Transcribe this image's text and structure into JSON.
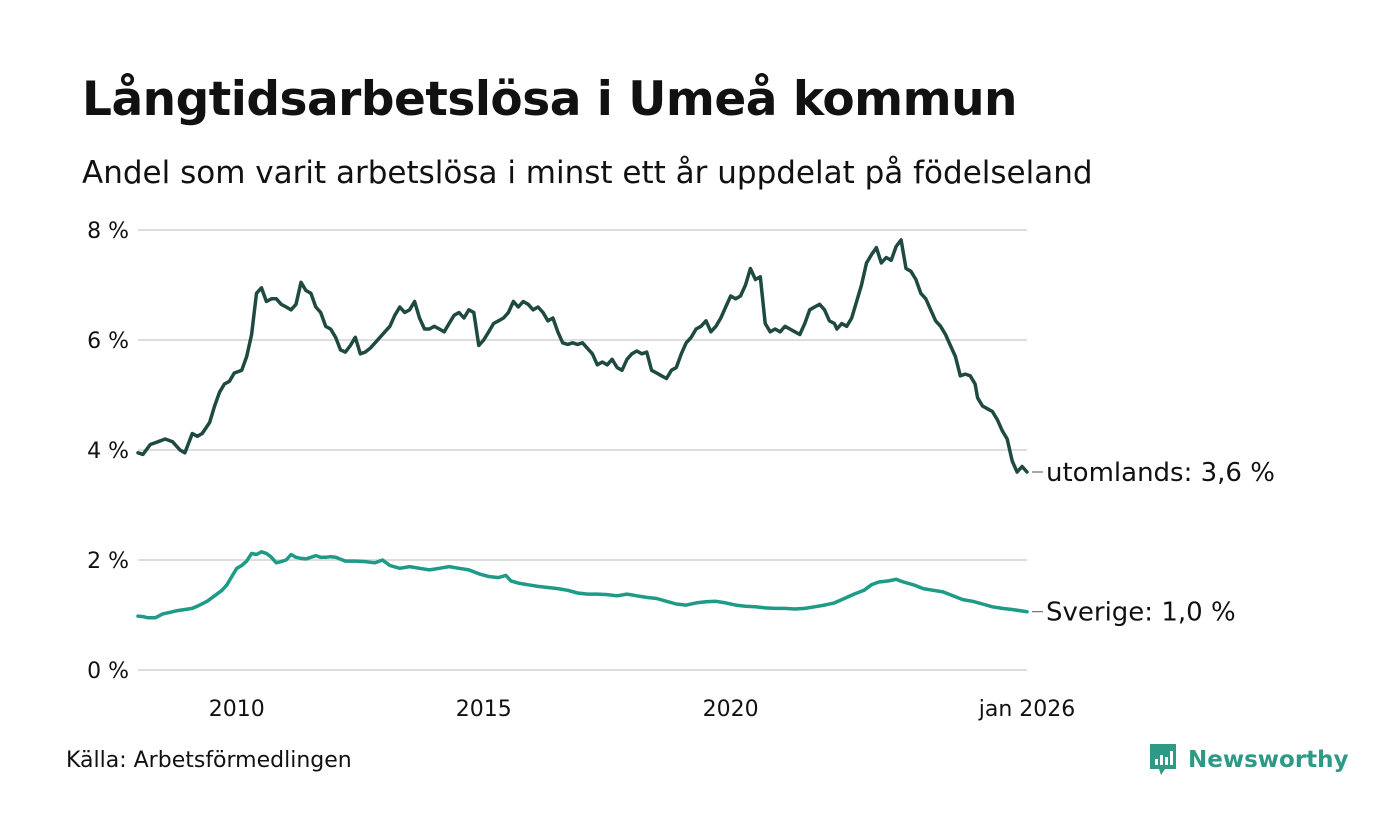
{
  "header": {
    "title": "Långtidsarbetslösa i Umeå kommun",
    "subtitle": "Andel som varit arbetslösa i minst ett år uppdelat på födelseland"
  },
  "footer": {
    "source": "Källa: Arbetsförmedlingen",
    "brand": "Newsworthy",
    "brand_icon": "newsworthy-logo-icon"
  },
  "colors": {
    "utomlands": "#1f4a42",
    "sverige": "#1e9a87",
    "grid": "#dddddd",
    "brand": "#2e9a85"
  },
  "chart_data": {
    "type": "line",
    "title": "Långtidsarbetslösa i Umeå kommun",
    "subtitle": "Andel som varit arbetslösa i minst ett år uppdelat på födelseland",
    "xlabel": "",
    "ylabel": "",
    "x_unit": "year (decimal, monthly data)",
    "xlim": [
      2008.0,
      2026.0
    ],
    "ylim": [
      0,
      8
    ],
    "grid": true,
    "y_ticks": [
      0,
      2,
      4,
      6,
      8
    ],
    "y_tick_labels": [
      "0 %",
      "2 %",
      "4 %",
      "6 %",
      "8 %"
    ],
    "x_ticks": [
      2010,
      2015,
      2020,
      2026.0
    ],
    "x_tick_labels": [
      "2010",
      "2015",
      "2020",
      "jan 2026"
    ],
    "series": [
      {
        "name": "utomlands",
        "end_label": "utomlands: 3,6 %",
        "points": [
          [
            2008.0,
            3.95
          ],
          [
            2008.1,
            3.92
          ],
          [
            2008.25,
            4.1
          ],
          [
            2008.4,
            4.15
          ],
          [
            2008.55,
            4.2
          ],
          [
            2008.7,
            4.15
          ],
          [
            2008.85,
            4.0
          ],
          [
            2008.95,
            3.95
          ],
          [
            2009.1,
            4.3
          ],
          [
            2009.2,
            4.25
          ],
          [
            2009.3,
            4.3
          ],
          [
            2009.45,
            4.5
          ],
          [
            2009.55,
            4.8
          ],
          [
            2009.65,
            5.05
          ],
          [
            2009.75,
            5.2
          ],
          [
            2009.85,
            5.25
          ],
          [
            2009.95,
            5.4
          ],
          [
            2010.1,
            5.45
          ],
          [
            2010.2,
            5.7
          ],
          [
            2010.3,
            6.1
          ],
          [
            2010.4,
            6.85
          ],
          [
            2010.5,
            6.95
          ],
          [
            2010.6,
            6.7
          ],
          [
            2010.7,
            6.75
          ],
          [
            2010.8,
            6.75
          ],
          [
            2010.9,
            6.65
          ],
          [
            2011.0,
            6.6
          ],
          [
            2011.1,
            6.55
          ],
          [
            2011.2,
            6.65
          ],
          [
            2011.3,
            7.05
          ],
          [
            2011.4,
            6.9
          ],
          [
            2011.5,
            6.85
          ],
          [
            2011.6,
            6.6
          ],
          [
            2011.7,
            6.5
          ],
          [
            2011.8,
            6.25
          ],
          [
            2011.9,
            6.2
          ],
          [
            2012.0,
            6.05
          ],
          [
            2012.1,
            5.82
          ],
          [
            2012.2,
            5.78
          ],
          [
            2012.3,
            5.9
          ],
          [
            2012.4,
            6.05
          ],
          [
            2012.5,
            5.75
          ],
          [
            2012.6,
            5.78
          ],
          [
            2012.7,
            5.85
          ],
          [
            2012.8,
            5.95
          ],
          [
            2012.9,
            6.05
          ],
          [
            2013.0,
            6.15
          ],
          [
            2013.1,
            6.25
          ],
          [
            2013.2,
            6.45
          ],
          [
            2013.3,
            6.6
          ],
          [
            2013.4,
            6.5
          ],
          [
            2013.5,
            6.55
          ],
          [
            2013.6,
            6.7
          ],
          [
            2013.7,
            6.4
          ],
          [
            2013.8,
            6.2
          ],
          [
            2013.9,
            6.2
          ],
          [
            2014.0,
            6.25
          ],
          [
            2014.1,
            6.2
          ],
          [
            2014.2,
            6.15
          ],
          [
            2014.3,
            6.3
          ],
          [
            2014.4,
            6.45
          ],
          [
            2014.5,
            6.5
          ],
          [
            2014.6,
            6.4
          ],
          [
            2014.7,
            6.55
          ],
          [
            2014.8,
            6.5
          ],
          [
            2014.9,
            5.9
          ],
          [
            2015.0,
            6.0
          ],
          [
            2015.1,
            6.15
          ],
          [
            2015.2,
            6.3
          ],
          [
            2015.3,
            6.35
          ],
          [
            2015.4,
            6.4
          ],
          [
            2015.5,
            6.5
          ],
          [
            2015.6,
            6.7
          ],
          [
            2015.7,
            6.6
          ],
          [
            2015.8,
            6.7
          ],
          [
            2015.9,
            6.65
          ],
          [
            2016.0,
            6.55
          ],
          [
            2016.1,
            6.6
          ],
          [
            2016.2,
            6.5
          ],
          [
            2016.3,
            6.35
          ],
          [
            2016.4,
            6.4
          ],
          [
            2016.5,
            6.15
          ],
          [
            2016.6,
            5.95
          ],
          [
            2016.7,
            5.92
          ],
          [
            2016.8,
            5.95
          ],
          [
            2016.9,
            5.92
          ],
          [
            2017.0,
            5.95
          ],
          [
            2017.1,
            5.85
          ],
          [
            2017.2,
            5.75
          ],
          [
            2017.3,
            5.55
          ],
          [
            2017.4,
            5.6
          ],
          [
            2017.5,
            5.55
          ],
          [
            2017.6,
            5.65
          ],
          [
            2017.7,
            5.5
          ],
          [
            2017.8,
            5.45
          ],
          [
            2017.9,
            5.65
          ],
          [
            2018.0,
            5.75
          ],
          [
            2018.1,
            5.8
          ],
          [
            2018.2,
            5.75
          ],
          [
            2018.3,
            5.78
          ],
          [
            2018.4,
            5.45
          ],
          [
            2018.5,
            5.4
          ],
          [
            2018.6,
            5.35
          ],
          [
            2018.7,
            5.3
          ],
          [
            2018.8,
            5.45
          ],
          [
            2018.9,
            5.5
          ],
          [
            2019.0,
            5.75
          ],
          [
            2019.1,
            5.95
          ],
          [
            2019.2,
            6.05
          ],
          [
            2019.3,
            6.2
          ],
          [
            2019.4,
            6.25
          ],
          [
            2019.5,
            6.35
          ],
          [
            2019.6,
            6.15
          ],
          [
            2019.7,
            6.25
          ],
          [
            2019.8,
            6.4
          ],
          [
            2019.9,
            6.6
          ],
          [
            2020.0,
            6.8
          ],
          [
            2020.1,
            6.75
          ],
          [
            2020.2,
            6.8
          ],
          [
            2020.3,
            7.0
          ],
          [
            2020.4,
            7.3
          ],
          [
            2020.5,
            7.1
          ],
          [
            2020.6,
            7.15
          ],
          [
            2020.7,
            6.3
          ],
          [
            2020.8,
            6.15
          ],
          [
            2020.9,
            6.2
          ],
          [
            2021.0,
            6.15
          ],
          [
            2021.1,
            6.25
          ],
          [
            2021.2,
            6.2
          ],
          [
            2021.3,
            6.15
          ],
          [
            2021.4,
            6.1
          ],
          [
            2021.5,
            6.3
          ],
          [
            2021.6,
            6.55
          ],
          [
            2021.7,
            6.6
          ],
          [
            2021.8,
            6.65
          ],
          [
            2021.9,
            6.55
          ],
          [
            2022.0,
            6.35
          ],
          [
            2022.1,
            6.3
          ],
          [
            2022.15,
            6.2
          ],
          [
            2022.25,
            6.3
          ],
          [
            2022.35,
            6.25
          ],
          [
            2022.45,
            6.4
          ],
          [
            2022.55,
            6.7
          ],
          [
            2022.65,
            7.0
          ],
          [
            2022.75,
            7.4
          ],
          [
            2022.85,
            7.55
          ],
          [
            2022.95,
            7.68
          ],
          [
            2023.05,
            7.4
          ],
          [
            2023.15,
            7.5
          ],
          [
            2023.25,
            7.45
          ],
          [
            2023.35,
            7.7
          ],
          [
            2023.45,
            7.82
          ],
          [
            2023.55,
            7.3
          ],
          [
            2023.65,
            7.25
          ],
          [
            2023.75,
            7.1
          ],
          [
            2023.85,
            6.85
          ],
          [
            2023.95,
            6.75
          ],
          [
            2024.05,
            6.55
          ],
          [
            2024.15,
            6.35
          ],
          [
            2024.25,
            6.25
          ],
          [
            2024.35,
            6.1
          ],
          [
            2024.45,
            5.9
          ],
          [
            2024.55,
            5.7
          ],
          [
            2024.65,
            5.35
          ],
          [
            2024.75,
            5.38
          ],
          [
            2024.85,
            5.35
          ],
          [
            2024.95,
            5.2
          ],
          [
            2025.0,
            4.95
          ],
          [
            2025.1,
            4.8
          ],
          [
            2025.2,
            4.75
          ],
          [
            2025.3,
            4.7
          ],
          [
            2025.4,
            4.55
          ],
          [
            2025.5,
            4.35
          ],
          [
            2025.6,
            4.2
          ],
          [
            2025.7,
            3.8
          ],
          [
            2025.8,
            3.6
          ],
          [
            2025.9,
            3.7
          ],
          [
            2026.0,
            3.6
          ]
        ]
      },
      {
        "name": "Sverige",
        "end_label": "Sverige: 1,0 %",
        "points": [
          [
            2008.0,
            0.98
          ],
          [
            2008.1,
            0.97
          ],
          [
            2008.2,
            0.95
          ],
          [
            2008.35,
            0.95
          ],
          [
            2008.5,
            1.02
          ],
          [
            2008.65,
            1.05
          ],
          [
            2008.8,
            1.08
          ],
          [
            2008.95,
            1.1
          ],
          [
            2009.1,
            1.12
          ],
          [
            2009.25,
            1.18
          ],
          [
            2009.4,
            1.25
          ],
          [
            2009.55,
            1.35
          ],
          [
            2009.7,
            1.45
          ],
          [
            2009.8,
            1.55
          ],
          [
            2009.9,
            1.7
          ],
          [
            2010.0,
            1.85
          ],
          [
            2010.1,
            1.9
          ],
          [
            2010.2,
            1.98
          ],
          [
            2010.3,
            2.12
          ],
          [
            2010.4,
            2.1
          ],
          [
            2010.5,
            2.15
          ],
          [
            2010.6,
            2.12
          ],
          [
            2010.7,
            2.05
          ],
          [
            2010.8,
            1.95
          ],
          [
            2010.9,
            1.97
          ],
          [
            2011.0,
            2.0
          ],
          [
            2011.1,
            2.1
          ],
          [
            2011.2,
            2.05
          ],
          [
            2011.3,
            2.03
          ],
          [
            2011.4,
            2.02
          ],
          [
            2011.5,
            2.05
          ],
          [
            2011.6,
            2.08
          ],
          [
            2011.7,
            2.05
          ],
          [
            2011.8,
            2.05
          ],
          [
            2011.9,
            2.06
          ],
          [
            2012.0,
            2.05
          ],
          [
            2012.2,
            1.98
          ],
          [
            2012.4,
            1.98
          ],
          [
            2012.6,
            1.97
          ],
          [
            2012.8,
            1.95
          ],
          [
            2012.95,
            2.0
          ],
          [
            2013.1,
            1.9
          ],
          [
            2013.3,
            1.85
          ],
          [
            2013.5,
            1.88
          ],
          [
            2013.7,
            1.85
          ],
          [
            2013.9,
            1.82
          ],
          [
            2014.1,
            1.85
          ],
          [
            2014.3,
            1.88
          ],
          [
            2014.5,
            1.85
          ],
          [
            2014.7,
            1.82
          ],
          [
            2014.9,
            1.75
          ],
          [
            2015.1,
            1.7
          ],
          [
            2015.3,
            1.68
          ],
          [
            2015.45,
            1.72
          ],
          [
            2015.55,
            1.62
          ],
          [
            2015.7,
            1.58
          ],
          [
            2015.9,
            1.55
          ],
          [
            2016.1,
            1.52
          ],
          [
            2016.3,
            1.5
          ],
          [
            2016.5,
            1.48
          ],
          [
            2016.7,
            1.45
          ],
          [
            2016.9,
            1.4
          ],
          [
            2017.1,
            1.38
          ],
          [
            2017.3,
            1.38
          ],
          [
            2017.5,
            1.37
          ],
          [
            2017.7,
            1.35
          ],
          [
            2017.9,
            1.38
          ],
          [
            2018.1,
            1.35
          ],
          [
            2018.3,
            1.32
          ],
          [
            2018.5,
            1.3
          ],
          [
            2018.7,
            1.25
          ],
          [
            2018.9,
            1.2
          ],
          [
            2019.1,
            1.18
          ],
          [
            2019.3,
            1.22
          ],
          [
            2019.5,
            1.24
          ],
          [
            2019.7,
            1.25
          ],
          [
            2019.9,
            1.22
          ],
          [
            2020.1,
            1.18
          ],
          [
            2020.3,
            1.16
          ],
          [
            2020.5,
            1.15
          ],
          [
            2020.7,
            1.13
          ],
          [
            2020.9,
            1.12
          ],
          [
            2021.1,
            1.12
          ],
          [
            2021.3,
            1.11
          ],
          [
            2021.5,
            1.12
          ],
          [
            2021.7,
            1.15
          ],
          [
            2021.9,
            1.18
          ],
          [
            2022.1,
            1.22
          ],
          [
            2022.3,
            1.3
          ],
          [
            2022.5,
            1.38
          ],
          [
            2022.7,
            1.45
          ],
          [
            2022.85,
            1.55
          ],
          [
            2023.0,
            1.6
          ],
          [
            2023.2,
            1.62
          ],
          [
            2023.35,
            1.65
          ],
          [
            2023.5,
            1.6
          ],
          [
            2023.7,
            1.55
          ],
          [
            2023.9,
            1.48
          ],
          [
            2024.1,
            1.45
          ],
          [
            2024.3,
            1.42
          ],
          [
            2024.5,
            1.35
          ],
          [
            2024.7,
            1.28
          ],
          [
            2024.9,
            1.25
          ],
          [
            2025.1,
            1.2
          ],
          [
            2025.3,
            1.15
          ],
          [
            2025.5,
            1.12
          ],
          [
            2025.7,
            1.1
          ],
          [
            2025.85,
            1.08
          ],
          [
            2026.0,
            1.06
          ]
        ]
      }
    ]
  }
}
